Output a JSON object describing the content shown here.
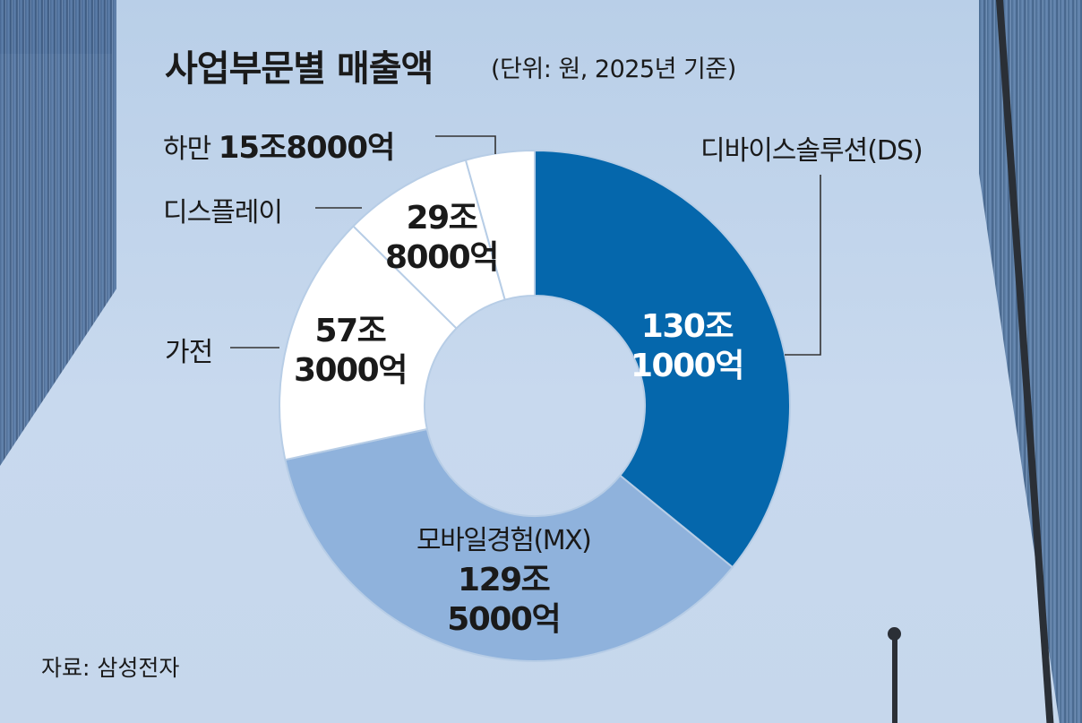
{
  "title": "사업부문별 매출액",
  "subtitle": "(단위: 원, 2025년 기준)",
  "source": "자료: 삼성전자",
  "chart_data": {
    "type": "pie",
    "title": "사업부문별 매출액",
    "unit": "원",
    "series": [
      {
        "name": "디바이스솔루션(DS)",
        "value": 130.1,
        "label_line1": "130조",
        "label_line2": "1000억",
        "color": "#0567ac"
      },
      {
        "name": "모바일경험(MX)",
        "value": 129.5,
        "label_line1": "129조",
        "label_line2": "5000억",
        "color": "#8fb2dc"
      },
      {
        "name": "가전",
        "value": 57.3,
        "label_line1": "57조",
        "label_line2": "3000억",
        "color": "#ffffff"
      },
      {
        "name": "디스플레이",
        "value": 29.8,
        "label_line1": "29조",
        "label_line2": "8000억",
        "color": "#ffffff"
      },
      {
        "name": "하만",
        "value": 15.8,
        "label_line1": "15조8000억",
        "label_line2": "",
        "color": "#ffffff"
      }
    ]
  }
}
